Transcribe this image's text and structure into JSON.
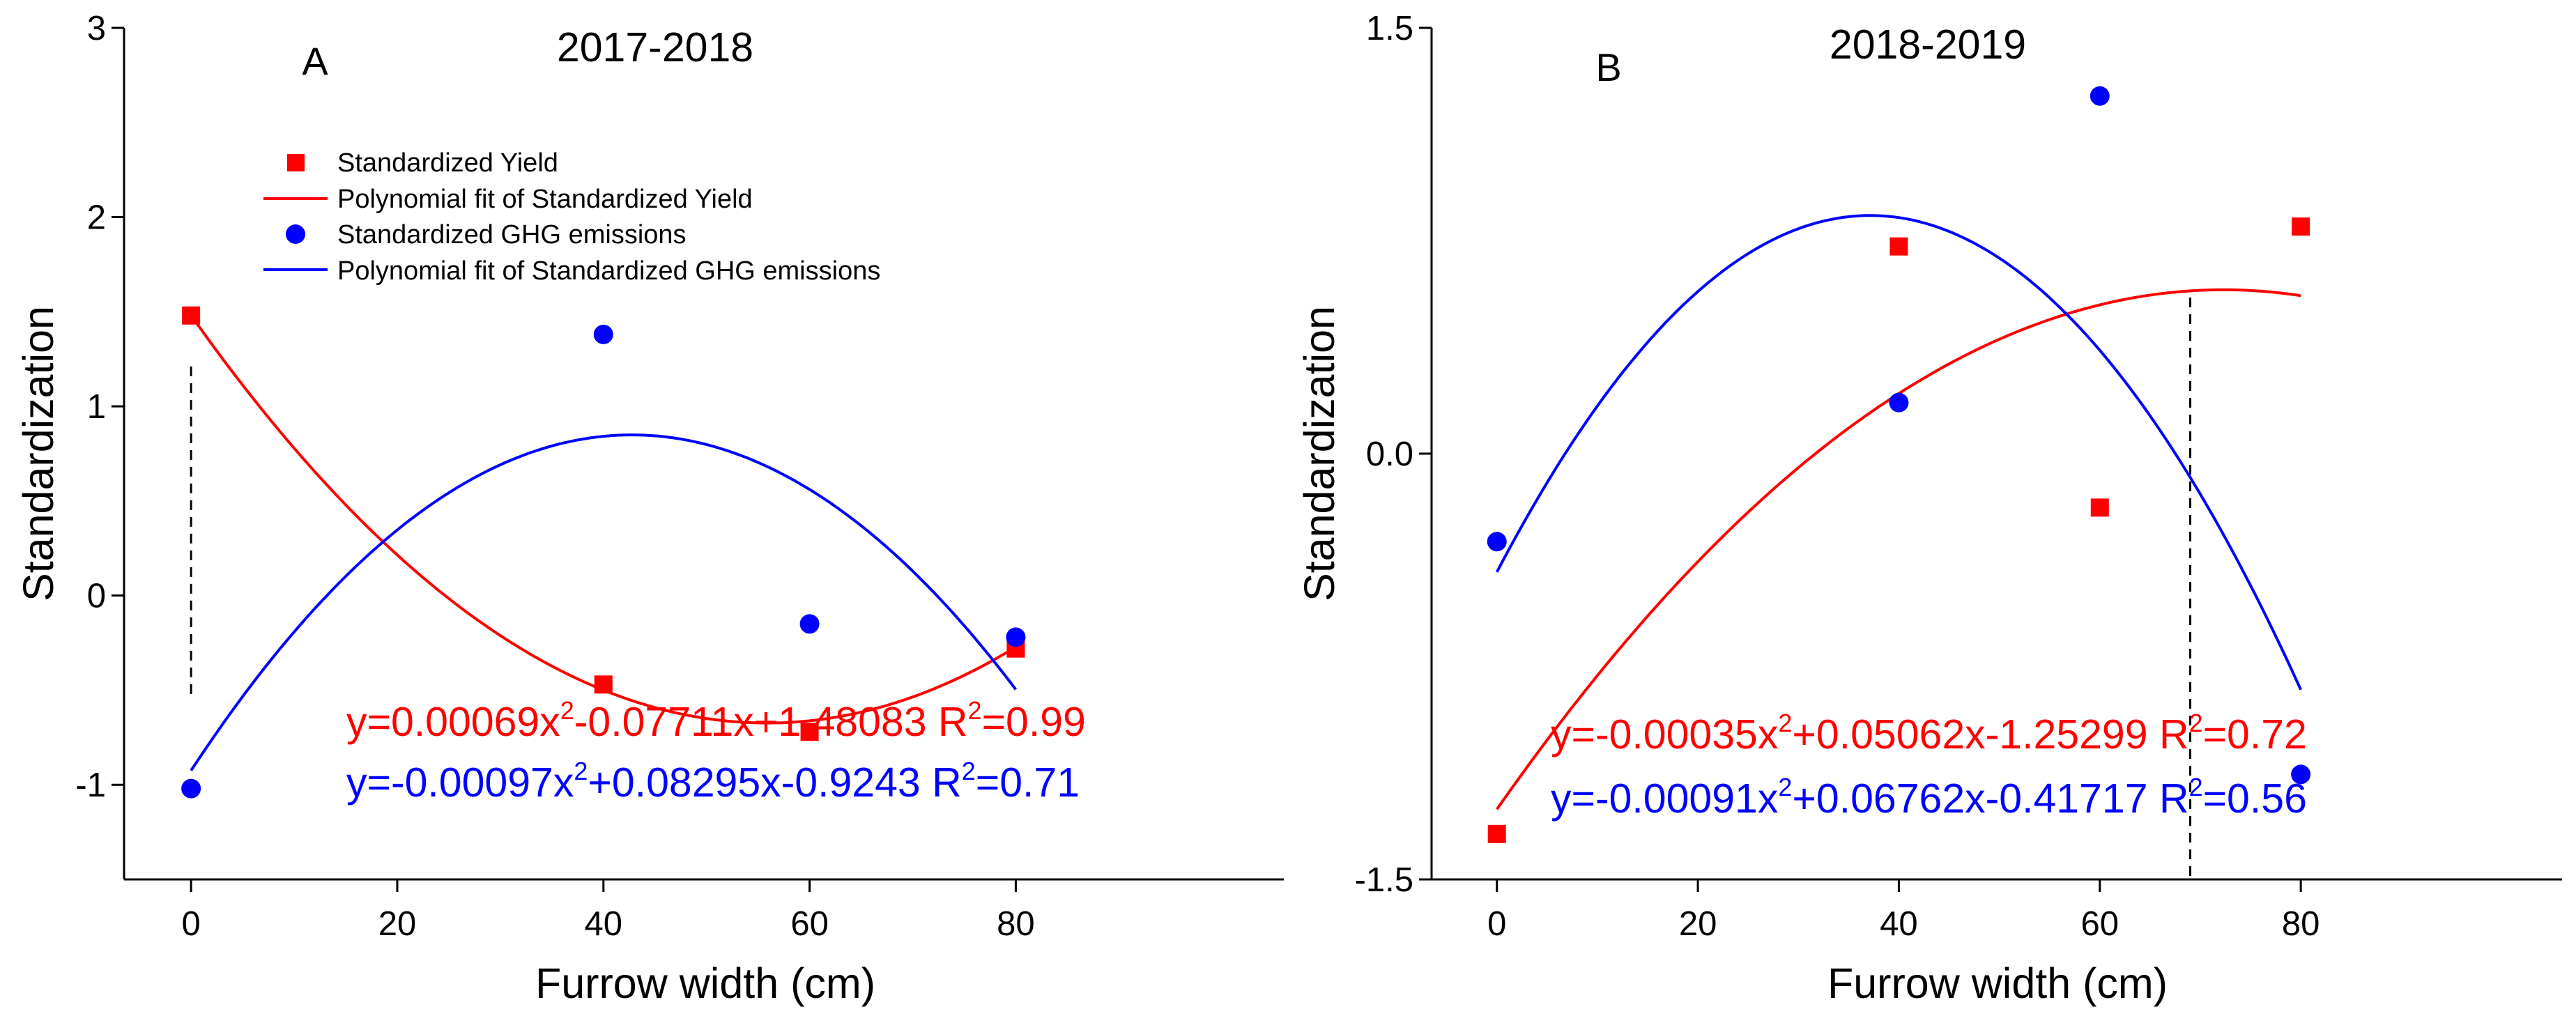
{
  "chart_data": [
    {
      "type": "scatter",
      "panel_label": "A",
      "title": "2017-2018",
      "xlabel": "Furrow width (cm)",
      "ylabel": "Standardization",
      "xlim": [
        -6.5,
        106
      ],
      "ylim": [
        -1.5,
        3
      ],
      "xticks": [
        0,
        20,
        40,
        60,
        80
      ],
      "xtick_labels": [
        "0",
        "20",
        "40",
        "60",
        "80"
      ],
      "yticks": [
        -1,
        0,
        1,
        2,
        3
      ],
      "ytick_labels": [
        "-1",
        "0",
        "1",
        "2",
        "3"
      ],
      "colors": {
        "yield": "#ff0000",
        "ghg": "#0000ff"
      },
      "legend": {
        "yield_points": "Standardized Yield",
        "yield_fit": "Polynomial fit of Standardized Yield",
        "ghg_points": "Standardized GHG emissions",
        "ghg_fit": "Polynomial fit of Standardized GHG emissions"
      },
      "series": [
        {
          "name": "Standardized Yield",
          "marker": "square",
          "color": "#ff0000",
          "x": [
            0,
            40,
            60,
            80
          ],
          "y": [
            1.48,
            -0.47,
            -0.72,
            -0.28
          ]
        },
        {
          "name": "Standardized GHG emissions",
          "marker": "circle",
          "color": "#0000ff",
          "x": [
            0,
            40,
            60,
            80
          ],
          "y": [
            -1.02,
            1.38,
            -0.15,
            -0.22
          ]
        }
      ],
      "fits": [
        {
          "name": "Polynomial fit of Standardized Yield",
          "color": "#ff0000",
          "coef": [
            0.00069,
            -0.07711,
            1.48083
          ],
          "x_range": [
            0,
            80
          ],
          "equation_label": "y=0.00069x2-0.07711x+1.48083 R2=0.99"
        },
        {
          "name": "Polynomial fit of Standardized GHG emissions",
          "color": "#0000ff",
          "coef": [
            -0.00097,
            0.08295,
            -0.9243
          ],
          "x_range": [
            0,
            80
          ],
          "equation_label": "y=-0.00097x2+0.08295x-0.9243 R2=0.71"
        }
      ],
      "equations": [
        {
          "prefix": "y=0.00069x",
          "mid": "-0.07711x+1.48083 R",
          "suffix": "=0.99",
          "color": "#ff0000"
        },
        {
          "prefix": "y=-0.00097x",
          "mid": "+0.08295x-0.9243 R",
          "suffix": "=0.71",
          "color": "#0000ff"
        }
      ],
      "ref_line": {
        "x": 0,
        "y_from": -0.52,
        "y_to": 1.23
      }
    },
    {
      "type": "scatter",
      "panel_label": "B",
      "title": "2018-2019",
      "xlabel": "Furrow width (cm)",
      "ylabel": "Standardization",
      "xlim": [
        -6.5,
        106
      ],
      "ylim": [
        -1.5,
        1.5
      ],
      "xticks": [
        0,
        20,
        40,
        60,
        80
      ],
      "xtick_labels": [
        "0",
        "20",
        "40",
        "60",
        "80"
      ],
      "yticks": [
        -1.5,
        0,
        1.5
      ],
      "ytick_labels": [
        "-1.5",
        "0.0",
        "1.5"
      ],
      "colors": {
        "yield": "#ff0000",
        "ghg": "#0000ff"
      },
      "series": [
        {
          "name": "Standardized Yield",
          "marker": "square",
          "color": "#ff0000",
          "x": [
            0,
            40,
            60,
            80
          ],
          "y": [
            -1.34,
            0.73,
            -0.19,
            0.8
          ]
        },
        {
          "name": "Standardized GHG emissions",
          "marker": "circle",
          "color": "#0000ff",
          "x": [
            0,
            40,
            60,
            80
          ],
          "y": [
            -0.31,
            0.18,
            1.26,
            -1.13
          ]
        }
      ],
      "fits": [
        {
          "name": "Polynomial fit of Standardized Yield",
          "color": "#ff0000",
          "coef": [
            -0.00035,
            0.05062,
            -1.25299
          ],
          "x_range": [
            0,
            80
          ],
          "equation_label": "y=-0.00035x2+0.05062x-1.25299 R2=0.72"
        },
        {
          "name": "Polynomial fit of Standardized GHG emissions",
          "color": "#0000ff",
          "coef": [
            -0.00091,
            0.06762,
            -0.41717
          ],
          "x_range": [
            0,
            80
          ],
          "equation_label": "y=-0.00091x2+0.06762x-0.41717 R2=0.56"
        }
      ],
      "equations": [
        {
          "prefix": "y=-0.00035x",
          "mid": "+0.05062x-1.25299 R",
          "suffix": "=0.72",
          "color": "#ff0000"
        },
        {
          "prefix": "y=-0.00091x",
          "mid": "+0.06762x-0.41717 R",
          "suffix": "=0.56",
          "color": "#0000ff"
        }
      ],
      "ref_line": {
        "x": 69,
        "y_from": 0.55,
        "y_to": -1.5
      }
    }
  ]
}
